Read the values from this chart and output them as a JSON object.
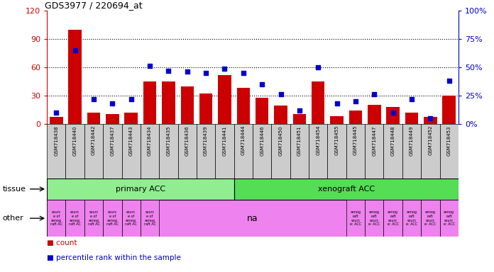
{
  "title": "GDS3977 / 220694_at",
  "samples": [
    "GSM718438",
    "GSM718440",
    "GSM718442",
    "GSM718437",
    "GSM718443",
    "GSM718434",
    "GSM718435",
    "GSM718436",
    "GSM718439",
    "GSM718441",
    "GSM718444",
    "GSM718446",
    "GSM718450",
    "GSM718451",
    "GSM718454",
    "GSM718455",
    "GSM718445",
    "GSM718447",
    "GSM718448",
    "GSM718449",
    "GSM718452",
    "GSM718453"
  ],
  "counts": [
    7,
    100,
    12,
    10,
    12,
    45,
    45,
    40,
    32,
    52,
    38,
    28,
    19,
    10,
    45,
    8,
    14,
    20,
    18,
    12,
    7,
    30
  ],
  "percentiles": [
    10,
    65,
    22,
    18,
    22,
    51,
    47,
    46,
    45,
    49,
    45,
    35,
    26,
    12,
    50,
    18,
    20,
    26,
    10,
    22,
    5,
    38
  ],
  "ylim_left": [
    0,
    120
  ],
  "ylim_right": [
    0,
    100
  ],
  "yticks_left": [
    0,
    30,
    60,
    90,
    120
  ],
  "yticks_right": [
    0,
    25,
    50,
    75,
    100
  ],
  "ytick_labels_left": [
    "0",
    "30",
    "60",
    "90",
    "120"
  ],
  "ytick_labels_right": [
    "0%",
    "25%",
    "50%",
    "75%",
    "100%"
  ],
  "tissue_groups": [
    {
      "label": "primary ACC",
      "start": 0,
      "end": 10,
      "color": "#90EE90"
    },
    {
      "label": "xenograft ACC",
      "start": 10,
      "end": 22,
      "color": "#55DD55"
    }
  ],
  "other_small_labels": [
    "sourc\ne of\nxenog\nraft AC",
    "sourc\ne of\nxenog\nraft AC",
    "sourc\ne of\nxenog\nraft AC",
    "sourc\ne of\nxenog\nraft AC",
    "sourc\ne of\nxenog\nraft AC",
    "sourc\ne of\nxenog\nraft AC"
  ],
  "other_xenog_labels": [
    "xenog\nraft\nsourc\ne: ACC",
    "xenog\nraft\nsourc\ne: ACC",
    "xenog\nraft\nsourc\ne: ACC",
    "xenog\nraft\nsourc\ne: ACC",
    "xenog\nraft\nsourc\ne: ACC",
    "xenog\nraft\nsourc\ne: ACC"
  ],
  "bar_color": "#CC0000",
  "dot_color": "#0000CC",
  "grid_color": "#000000",
  "left_axis_color": "#CC0000",
  "right_axis_color": "#0000CC",
  "xticklabel_bg": "#CCCCCC",
  "tissue_label": "tissue",
  "other_label": "other",
  "legend_count": "count",
  "legend_percentile": "percentile rank within the sample",
  "other_pink": "#EE82EE",
  "na_text": "na"
}
